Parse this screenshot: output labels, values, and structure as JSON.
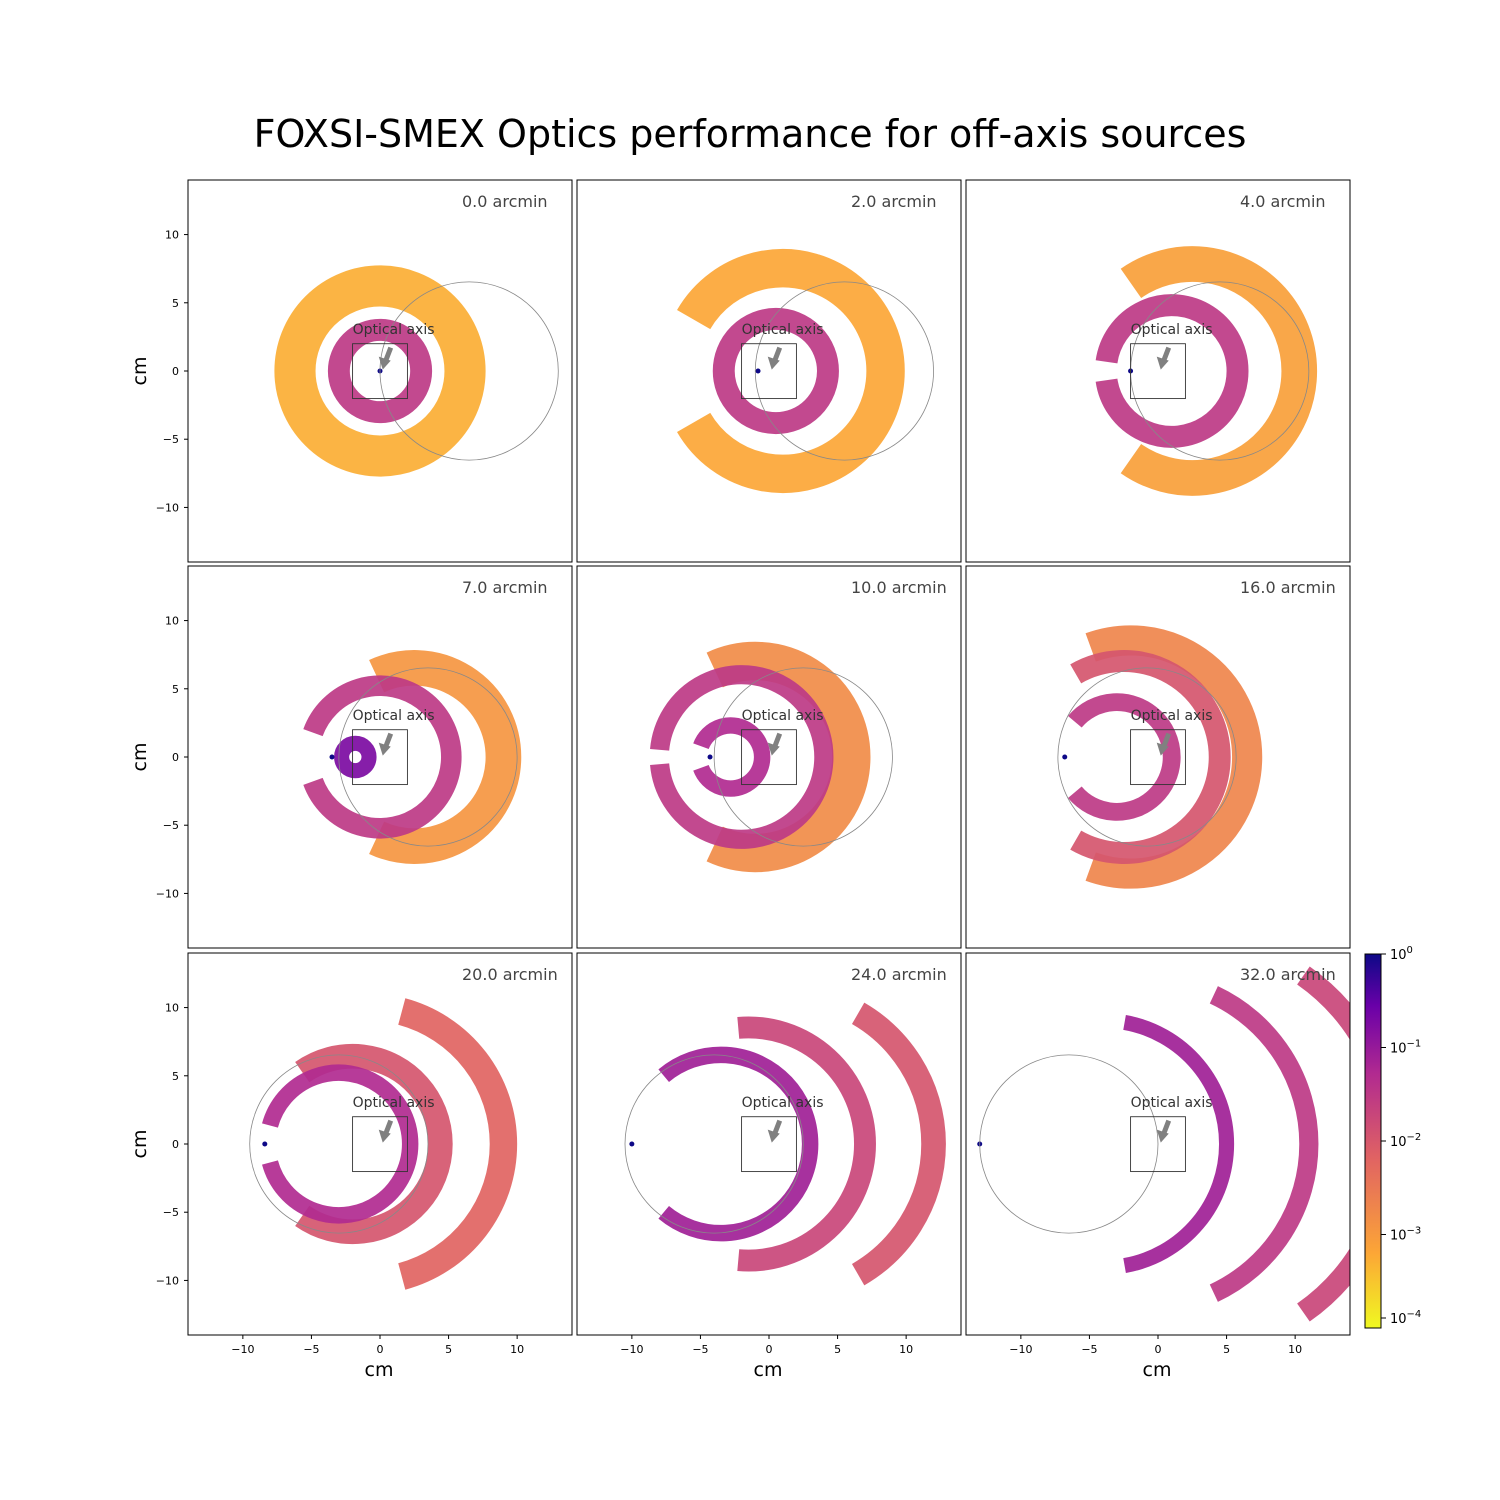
{
  "title": "FOXSI-SMEX Optics performance for off-axis sources",
  "annotation_label": "Optical axis",
  "colorbar": {
    "scale": "log",
    "range": [
      0.0001,
      1
    ],
    "cmap": "plasma_r",
    "ticks": [
      {
        "base": "10",
        "exp": "0",
        "value": 1
      },
      {
        "base": "10",
        "exp": "−1",
        "value": 0.1
      },
      {
        "base": "10",
        "exp": "−2",
        "value": 0.01
      },
      {
        "base": "10",
        "exp": "−3",
        "value": 0.001
      },
      {
        "base": "10",
        "exp": "−4",
        "value": 0.0001
      }
    ],
    "colors": [
      "#f0f921",
      "#fca636",
      "#e16462",
      "#b12a90",
      "#6a00a8",
      "#0d0887"
    ]
  },
  "chart_data": {
    "type": "heatmap",
    "grid": "3x3",
    "xlabel": "cm",
    "ylabel": "cm",
    "xlim": [
      -14,
      14
    ],
    "ylim": [
      -14,
      14
    ],
    "xticks": [
      -10,
      -5,
      0,
      5,
      10
    ],
    "yticks": [
      10,
      5,
      0,
      -5,
      -10
    ],
    "tick_labels": [
      "−10",
      "−5",
      "0",
      "5",
      "10"
    ],
    "detector_box": {
      "x": [
        -2,
        2
      ],
      "y": [
        -2,
        2
      ]
    },
    "panels": [
      {
        "label": "0.0 arcmin",
        "offset_arcmin": 0.0,
        "circle_center": [
          6.5,
          0
        ],
        "circle_radius": 6.5,
        "focus_x": 0,
        "arrow_tip": [
          0.2,
          0.1
        ],
        "rings": [
          {
            "cx": 0,
            "r": 6.2,
            "w": 3.0,
            "arc": [
              0,
              360
            ],
            "level": 0.18
          },
          {
            "cx": 0,
            "r": 3.0,
            "w": 1.6,
            "arc": [
              0,
              360
            ],
            "level": 0.55
          }
        ]
      },
      {
        "label": "2.0 arcmin",
        "offset_arcmin": 2.0,
        "circle_center": [
          5.5,
          0
        ],
        "circle_radius": 6.5,
        "focus_x": -0.8,
        "arrow_tip": [
          0.2,
          0.1
        ],
        "rings": [
          {
            "cx": 1.0,
            "r": 7.5,
            "w": 2.8,
            "arc": [
              -150,
              150
            ],
            "level": 0.2
          },
          {
            "cx": 0.5,
            "r": 3.8,
            "w": 1.6,
            "arc": [
              0,
              360
            ],
            "level": 0.55
          }
        ]
      },
      {
        "label": "4.0 arcmin",
        "offset_arcmin": 4.0,
        "circle_center": [
          4.5,
          0
        ],
        "circle_radius": 6.5,
        "focus_x": -2.0,
        "arrow_tip": [
          0.2,
          0.1
        ],
        "rings": [
          {
            "cx": 2.5,
            "r": 7.8,
            "w": 2.6,
            "arc": [
              -125,
              125
            ],
            "level": 0.22
          },
          {
            "cx": 1.0,
            "r": 4.8,
            "w": 1.6,
            "arc": [
              -172,
              172
            ],
            "level": 0.55
          }
        ]
      },
      {
        "label": "7.0 arcmin",
        "offset_arcmin": 7.0,
        "circle_center": [
          3.5,
          0
        ],
        "circle_radius": 6.5,
        "focus_x": -3.5,
        "arrow_tip": [
          0.2,
          0.1
        ],
        "rings": [
          {
            "cx": 2.5,
            "r": 6.5,
            "w": 2.6,
            "arc": [
              -115,
              115
            ],
            "level": 0.25
          },
          {
            "cx": 0.0,
            "r": 5.2,
            "w": 1.5,
            "arc": [
              -160,
              160
            ],
            "level": 0.55
          },
          {
            "cx": -1.8,
            "r": 1.0,
            "w": 1.1,
            "arc": [
              0,
              360
            ],
            "level": 0.75
          }
        ]
      },
      {
        "label": "10.0 arcmin",
        "offset_arcmin": 10.0,
        "circle_center": [
          2.5,
          0
        ],
        "circle_radius": 6.5,
        "focus_x": -4.3,
        "arrow_tip": [
          0.2,
          0.1
        ],
        "rings": [
          {
            "cx": -1.0,
            "r": 7.0,
            "w": 2.8,
            "arc": [
              -115,
              115
            ],
            "level": 0.28
          },
          {
            "cx": -2.0,
            "r": 6.0,
            "w": 1.4,
            "arc": [
              -175,
              175
            ],
            "level": 0.55
          },
          {
            "cx": -2.8,
            "r": 2.3,
            "w": 1.2,
            "arc": [
              -160,
              160
            ],
            "level": 0.6
          }
        ]
      },
      {
        "label": "16.0 arcmin",
        "offset_arcmin": 16.0,
        "circle_center": [
          -0.8,
          0
        ],
        "circle_radius": 6.5,
        "focus_x": -6.8,
        "arrow_tip": [
          0.2,
          0.1
        ],
        "rings": [
          {
            "cx": -2.0,
            "r": 8.5,
            "w": 2.2,
            "arc": [
              -110,
              110
            ],
            "level": 0.3
          },
          {
            "cx": -2.5,
            "r": 7.0,
            "w": 1.6,
            "arc": [
              -120,
              120
            ],
            "level": 0.45
          },
          {
            "cx": -3.0,
            "r": 4.0,
            "w": 1.3,
            "arc": [
              -140,
              140
            ],
            "level": 0.55
          }
        ]
      },
      {
        "label": "20.0 arcmin",
        "offset_arcmin": 20.0,
        "circle_center": [
          -3.0,
          0
        ],
        "circle_radius": 6.5,
        "focus_x": -8.4,
        "arrow_tip": [
          0.2,
          0.1
        ],
        "rings": [
          {
            "cx": -1.0,
            "r": 10.0,
            "w": 2.0,
            "arc": [
              -75,
              75
            ],
            "level": 0.4
          },
          {
            "cx": -2.0,
            "r": 6.4,
            "w": 1.8,
            "arc": [
              -125,
              125
            ],
            "level": 0.45
          },
          {
            "cx": -3.0,
            "r": 5.2,
            "w": 1.2,
            "arc": [
              -165,
              165
            ],
            "level": 0.6
          }
        ]
      },
      {
        "label": "24.0 arcmin",
        "offset_arcmin": 24.0,
        "circle_center": [
          -4.0,
          0
        ],
        "circle_radius": 6.5,
        "focus_x": -10.0,
        "arrow_tip": [
          0.2,
          0.1
        ],
        "rings": [
          {
            "cx": 1.0,
            "r": 11.0,
            "w": 1.8,
            "arc": [
              -60,
              60
            ],
            "level": 0.45
          },
          {
            "cx": -1.5,
            "r": 8.5,
            "w": 1.6,
            "arc": [
              -95,
              95
            ],
            "level": 0.5
          },
          {
            "cx": -3.5,
            "r": 6.5,
            "w": 1.2,
            "arc": [
              -130,
              130
            ],
            "level": 0.65
          }
        ]
      },
      {
        "label": "32.0 arcmin",
        "offset_arcmin": 32.0,
        "circle_center": [
          -6.5,
          0
        ],
        "circle_radius": 6.5,
        "focus_x": -13.0,
        "arrow_tip": [
          0.2,
          0.1
        ],
        "rings": [
          {
            "cx": 2.0,
            "r": 15.0,
            "w": 1.6,
            "arc": [
              -55,
              55
            ],
            "level": 0.5
          },
          {
            "cx": -1.0,
            "r": 12.0,
            "w": 1.4,
            "arc": [
              -65,
              65
            ],
            "level": 0.55
          },
          {
            "cx": -4.0,
            "r": 9.0,
            "w": 1.1,
            "arc": [
              -80,
              80
            ],
            "level": 0.65
          }
        ]
      }
    ]
  }
}
